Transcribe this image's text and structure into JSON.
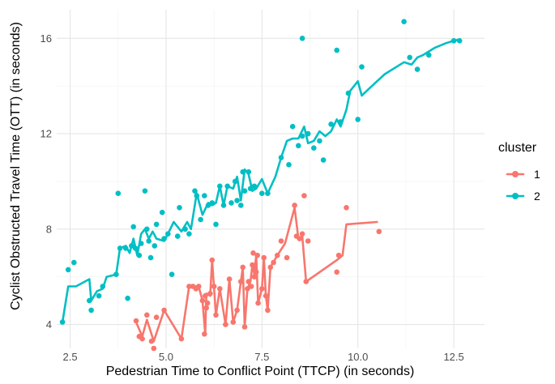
{
  "chart_data": {
    "type": "scatter",
    "title": "",
    "xlabel": "Pedestrian Time to Conflict Point (TTCP) (in seconds)",
    "ylabel": "Cyclist Obstructed Travel Time (OTT) (in seconds)",
    "xlim": [
      2.15,
      13.3
    ],
    "ylim": [
      3.0,
      17.2
    ],
    "x_ticks": [
      2.5,
      5.0,
      7.5,
      10.0,
      12.5
    ],
    "x_tick_labels": [
      "2.5",
      "5.0",
      "7.5",
      "10.0",
      "12.5"
    ],
    "y_ticks": [
      4,
      8,
      12,
      16
    ],
    "y_tick_labels": [
      "4",
      "8",
      "12",
      "16"
    ],
    "grid": true,
    "legend": {
      "title": "cluster",
      "position": "right",
      "entries": [
        {
          "label": "1",
          "color": "#F8766D"
        },
        {
          "label": "2",
          "color": "#00BFC4"
        }
      ]
    },
    "series": [
      {
        "name": "1",
        "color": "#F8766D",
        "points": [
          [
            4.22,
            4.15
          ],
          [
            4.3,
            3.5
          ],
          [
            4.38,
            3.4
          ],
          [
            4.5,
            4.4
          ],
          [
            4.62,
            3.3
          ],
          [
            4.68,
            3.0
          ],
          [
            4.75,
            4.3
          ],
          [
            4.95,
            4.6
          ],
          [
            5.4,
            3.4
          ],
          [
            5.6,
            5.6
          ],
          [
            5.7,
            5.6
          ],
          [
            5.78,
            5.5
          ],
          [
            5.85,
            5.6
          ],
          [
            5.95,
            5.0
          ],
          [
            6.0,
            3.6
          ],
          [
            6.02,
            5.2
          ],
          [
            6.05,
            4.7
          ],
          [
            6.08,
            4.9
          ],
          [
            6.15,
            5.3
          ],
          [
            6.2,
            6.7
          ],
          [
            6.25,
            5.6
          ],
          [
            6.3,
            4.4
          ],
          [
            6.4,
            5.5
          ],
          [
            6.55,
            4.0
          ],
          [
            6.65,
            5.9
          ],
          [
            6.75,
            4.1
          ],
          [
            6.85,
            4.6
          ],
          [
            6.95,
            5.8
          ],
          [
            7.0,
            6.4
          ],
          [
            7.05,
            3.9
          ],
          [
            7.12,
            5.5
          ],
          [
            7.15,
            5.8
          ],
          [
            7.22,
            5.6
          ],
          [
            7.25,
            6.5
          ],
          [
            7.27,
            7.0
          ],
          [
            7.3,
            6.0
          ],
          [
            7.35,
            6.2
          ],
          [
            7.38,
            6.9
          ],
          [
            7.4,
            4.9
          ],
          [
            7.5,
            5.5
          ],
          [
            7.55,
            6.8
          ],
          [
            7.6,
            5.2
          ],
          [
            7.65,
            4.6
          ],
          [
            7.72,
            6.4
          ],
          [
            7.8,
            6.6
          ],
          [
            7.9,
            6.9
          ],
          [
            8.0,
            7.5
          ],
          [
            8.15,
            6.8
          ],
          [
            8.35,
            9.0
          ],
          [
            8.4,
            7.7
          ],
          [
            8.48,
            7.6
          ],
          [
            8.55,
            7.8
          ],
          [
            8.6,
            9.4
          ],
          [
            8.65,
            5.8
          ],
          [
            8.7,
            7.5
          ],
          [
            9.45,
            6.2
          ],
          [
            9.5,
            6.9
          ],
          [
            9.7,
            8.9
          ],
          [
            10.55,
            7.9
          ]
        ],
        "line": [
          [
            4.22,
            4.1
          ],
          [
            4.38,
            3.5
          ],
          [
            4.5,
            4.2
          ],
          [
            4.68,
            3.3
          ],
          [
            4.95,
            4.6
          ],
          [
            5.4,
            3.4
          ],
          [
            5.6,
            5.6
          ],
          [
            5.85,
            5.6
          ],
          [
            5.95,
            5.0
          ],
          [
            6.02,
            3.6
          ],
          [
            6.05,
            5.3
          ],
          [
            6.15,
            5.2
          ],
          [
            6.2,
            6.7
          ],
          [
            6.3,
            4.4
          ],
          [
            6.4,
            5.5
          ],
          [
            6.55,
            4.0
          ],
          [
            6.65,
            5.9
          ],
          [
            6.75,
            4.1
          ],
          [
            6.85,
            4.6
          ],
          [
            6.95,
            5.8
          ],
          [
            7.0,
            6.4
          ],
          [
            7.05,
            3.9
          ],
          [
            7.12,
            5.5
          ],
          [
            7.2,
            5.8
          ],
          [
            7.25,
            6.5
          ],
          [
            7.3,
            6.1
          ],
          [
            7.35,
            6.9
          ],
          [
            7.4,
            4.9
          ],
          [
            7.5,
            5.5
          ],
          [
            7.55,
            6.8
          ],
          [
            7.6,
            5.2
          ],
          [
            7.65,
            4.6
          ],
          [
            7.72,
            6.4
          ],
          [
            7.9,
            6.9
          ],
          [
            8.1,
            7.4
          ],
          [
            8.35,
            8.9
          ],
          [
            8.45,
            7.6
          ],
          [
            8.55,
            7.7
          ],
          [
            8.65,
            5.8
          ],
          [
            9.45,
            6.7
          ],
          [
            9.6,
            6.9
          ],
          [
            9.7,
            8.2
          ],
          [
            10.5,
            8.3
          ]
        ]
      },
      {
        "name": "2",
        "color": "#00BFC4",
        "points": [
          [
            2.3,
            4.1
          ],
          [
            2.45,
            6.3
          ],
          [
            2.6,
            6.6
          ],
          [
            3.0,
            5.0
          ],
          [
            3.05,
            4.6
          ],
          [
            3.25,
            5.2
          ],
          [
            3.35,
            5.6
          ],
          [
            3.7,
            6.1
          ],
          [
            3.75,
            9.5
          ],
          [
            3.8,
            7.2
          ],
          [
            3.95,
            7.2
          ],
          [
            4.0,
            5.1
          ],
          [
            4.1,
            7.3
          ],
          [
            4.15,
            8.1
          ],
          [
            4.2,
            7.2
          ],
          [
            4.3,
            6.9
          ],
          [
            4.35,
            7.4
          ],
          [
            4.45,
            9.6
          ],
          [
            4.5,
            8.0
          ],
          [
            4.55,
            7.5
          ],
          [
            4.6,
            6.8
          ],
          [
            4.7,
            7.3
          ],
          [
            4.75,
            8.2
          ],
          [
            4.9,
            8.7
          ],
          [
            4.95,
            7.6
          ],
          [
            5.05,
            7.8
          ],
          [
            5.15,
            6.1
          ],
          [
            5.3,
            7.7
          ],
          [
            5.35,
            8.9
          ],
          [
            5.5,
            8.0
          ],
          [
            5.6,
            7.8
          ],
          [
            5.75,
            9.6
          ],
          [
            5.8,
            9.4
          ],
          [
            5.9,
            8.4
          ],
          [
            6.0,
            9.4
          ],
          [
            6.1,
            9.0
          ],
          [
            6.2,
            9.1
          ],
          [
            6.3,
            8.2
          ],
          [
            6.4,
            9.8
          ],
          [
            6.5,
            9.0
          ],
          [
            6.6,
            9.8
          ],
          [
            6.7,
            9.1
          ],
          [
            6.8,
            10.0
          ],
          [
            6.85,
            9.2
          ],
          [
            6.95,
            9.0
          ],
          [
            7.0,
            10.4
          ],
          [
            7.05,
            9.6
          ],
          [
            7.15,
            10.4
          ],
          [
            7.2,
            9.7
          ],
          [
            7.3,
            9.8
          ],
          [
            7.5,
            9.5
          ],
          [
            7.65,
            9.5
          ],
          [
            8.0,
            11.0
          ],
          [
            8.2,
            10.7
          ],
          [
            8.3,
            12.3
          ],
          [
            8.45,
            11.5
          ],
          [
            8.55,
            11.9
          ],
          [
            8.7,
            12.0
          ],
          [
            8.85,
            11.4
          ],
          [
            9.0,
            11.7
          ],
          [
            9.1,
            10.9
          ],
          [
            9.3,
            12.4
          ],
          [
            9.45,
            15.5
          ],
          [
            9.55,
            12.5
          ],
          [
            9.75,
            13.7
          ],
          [
            10.0,
            12.6
          ],
          [
            10.1,
            14.8
          ],
          [
            11.2,
            16.7
          ],
          [
            11.35,
            15.2
          ],
          [
            11.55,
            14.7
          ],
          [
            11.85,
            15.3
          ],
          [
            12.5,
            15.9
          ],
          [
            12.65,
            15.9
          ],
          [
            8.55,
            16.0
          ]
        ],
        "line": [
          [
            2.3,
            4.1
          ],
          [
            2.45,
            5.6
          ],
          [
            2.65,
            5.6
          ],
          [
            3.0,
            5.9
          ],
          [
            3.05,
            5.0
          ],
          [
            3.2,
            5.4
          ],
          [
            3.35,
            5.5
          ],
          [
            3.45,
            6.0
          ],
          [
            3.7,
            6.1
          ],
          [
            3.8,
            7.2
          ],
          [
            3.95,
            7.3
          ],
          [
            4.05,
            7.0
          ],
          [
            4.15,
            7.6
          ],
          [
            4.25,
            6.9
          ],
          [
            4.35,
            7.8
          ],
          [
            4.45,
            8.0
          ],
          [
            4.55,
            7.6
          ],
          [
            4.65,
            7.9
          ],
          [
            4.75,
            7.6
          ],
          [
            4.95,
            7.5
          ],
          [
            5.05,
            7.8
          ],
          [
            5.2,
            8.3
          ],
          [
            5.4,
            7.9
          ],
          [
            5.55,
            8.3
          ],
          [
            5.65,
            8.0
          ],
          [
            5.8,
            9.5
          ],
          [
            5.95,
            8.6
          ],
          [
            6.1,
            9.1
          ],
          [
            6.2,
            9.0
          ],
          [
            6.3,
            9.1
          ],
          [
            6.4,
            9.8
          ],
          [
            6.5,
            9.0
          ],
          [
            6.6,
            9.8
          ],
          [
            6.75,
            9.7
          ],
          [
            6.85,
            10.2
          ],
          [
            6.95,
            9.2
          ],
          [
            7.05,
            10.5
          ],
          [
            7.15,
            10.3
          ],
          [
            7.25,
            9.6
          ],
          [
            7.35,
            9.7
          ],
          [
            7.5,
            10.1
          ],
          [
            7.65,
            9.5
          ],
          [
            7.85,
            10.2
          ],
          [
            8.0,
            11.0
          ],
          [
            8.15,
            11.7
          ],
          [
            8.3,
            11.8
          ],
          [
            8.45,
            11.8
          ],
          [
            8.6,
            12.3
          ],
          [
            8.7,
            11.6
          ],
          [
            8.85,
            11.7
          ],
          [
            9.0,
            12.1
          ],
          [
            9.15,
            11.9
          ],
          [
            9.3,
            12.1
          ],
          [
            9.45,
            12.6
          ],
          [
            9.55,
            12.3
          ],
          [
            9.7,
            13.0
          ],
          [
            9.8,
            13.8
          ],
          [
            10.0,
            14.2
          ],
          [
            10.1,
            13.6
          ],
          [
            10.3,
            13.9
          ],
          [
            10.7,
            14.5
          ],
          [
            11.2,
            15.0
          ],
          [
            11.4,
            14.9
          ],
          [
            11.55,
            15.2
          ],
          [
            11.7,
            15.3
          ],
          [
            12.0,
            15.6
          ],
          [
            12.3,
            15.8
          ],
          [
            12.5,
            15.9
          ],
          [
            12.65,
            15.95
          ]
        ]
      }
    ]
  }
}
